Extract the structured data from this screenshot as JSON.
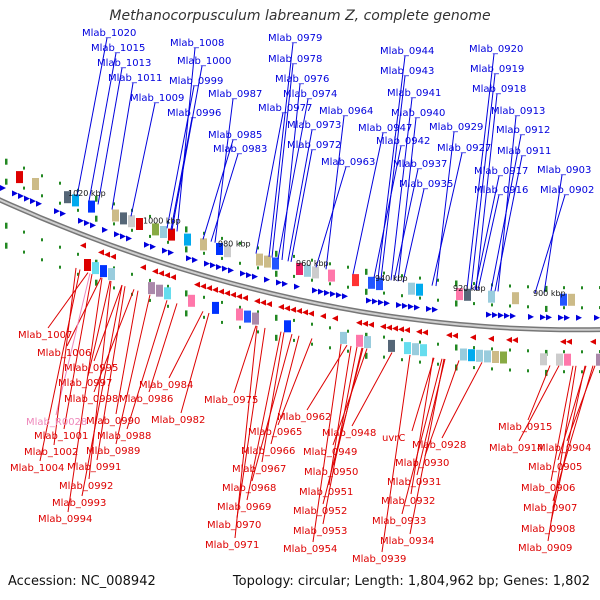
{
  "title": "Methanocorpusculum labreanum Z, complete genome",
  "footer": {
    "accession": "Accession: NC_008942",
    "topology": "Topology: circular; Length: 1,804,962 bp; Genes: 1,802"
  },
  "colors": {
    "forward": "#0000dd",
    "reverse": "#dd0000",
    "rna": "#ee88bb",
    "axis": "#999999",
    "tick": "#228822"
  },
  "scale_marks": [
    "1020 kbp",
    "1000 kbp",
    "980 kbp",
    "960 kbp",
    "940 kbp",
    "920 kbp",
    "900 kbp"
  ],
  "forward_genes": [
    "Mlab_1020",
    "Mlab_1015",
    "Mlab_1013",
    "Mlab_1011",
    "Mlab_1008",
    "Mlab_1000",
    "Mlab_0999",
    "Mlab_1009",
    "Mlab_0996",
    "Mlab_0987",
    "Mlab_0985",
    "Mlab_0983",
    "Mlab_0979",
    "Mlab_0978",
    "Mlab_0976",
    "Mlab_0974",
    "Mlab_0977",
    "Mlab_0973",
    "Mlab_0972",
    "Mlab_0964",
    "Mlab_0963",
    "Mlab_0944",
    "Mlab_0943",
    "Mlab_0941",
    "Mlab_0940",
    "Mlab_0947",
    "Mlab_0942",
    "Mlab_0937",
    "Mlab_0935",
    "Mlab_0929",
    "Mlab_0927",
    "Mlab_0920",
    "Mlab_0919",
    "Mlab_0918",
    "Mlab_0913",
    "Mlab_0912",
    "Mlab_0911",
    "Mlab_0917",
    "Mlab_0916",
    "Mlab_0903",
    "Mlab_0902"
  ],
  "reverse_genes": [
    "Mlab_1007",
    "Mlab_1006",
    "Mlab_0995",
    "Mlab_0997",
    "Mlab_0998",
    "Mlab_R0028",
    "Mlab_1001",
    "Mlab_1002",
    "Mlab_1004",
    "Mlab_0984",
    "Mlab_0986",
    "Mlab_0990",
    "Mlab_0988",
    "Mlab_0989",
    "Mlab_0991",
    "Mlab_0992",
    "Mlab_0993",
    "Mlab_0994",
    "Mlab_0982",
    "Mlab_0975",
    "Mlab_0962",
    "Mlab_0965",
    "Mlab_0966",
    "Mlab_0967",
    "Mlab_0968",
    "Mlab_0969",
    "Mlab_0970",
    "Mlab_0971",
    "Mlab_0948",
    "Mlab_0949",
    "Mlab_0950",
    "Mlab_0951",
    "Mlab_0952",
    "Mlab_0953",
    "Mlab_0954",
    "uvrC",
    "Mlab_0928",
    "Mlab_0930",
    "Mlab_0931",
    "Mlab_0932",
    "Mlab_0933",
    "Mlab_0934",
    "Mlab_0939",
    "Mlab_0915",
    "Mlab_0914",
    "Mlab_0904",
    "Mlab_0905",
    "Mlab_0906",
    "Mlab_0907",
    "Mlab_0908",
    "Mlab_0909"
  ]
}
